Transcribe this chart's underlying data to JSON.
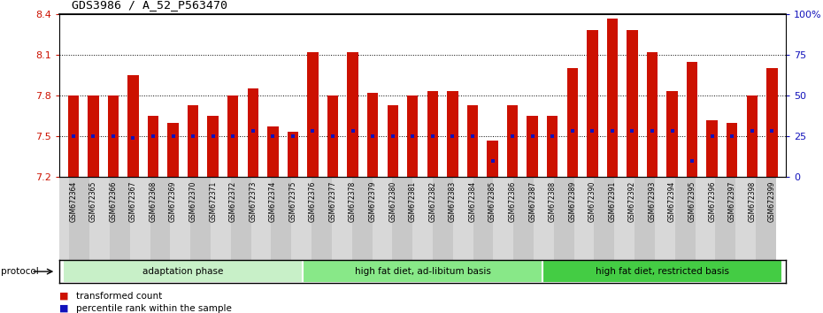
{
  "title": "GDS3986 / A_52_P563470",
  "samples": [
    "GSM672364",
    "GSM672365",
    "GSM672366",
    "GSM672367",
    "GSM672368",
    "GSM672369",
    "GSM672370",
    "GSM672371",
    "GSM672372",
    "GSM672373",
    "GSM672374",
    "GSM672375",
    "GSM672376",
    "GSM672377",
    "GSM672378",
    "GSM672379",
    "GSM672380",
    "GSM672381",
    "GSM672382",
    "GSM672383",
    "GSM672384",
    "GSM672385",
    "GSM672386",
    "GSM672387",
    "GSM672388",
    "GSM672389",
    "GSM672390",
    "GSM672391",
    "GSM672392",
    "GSM672393",
    "GSM672394",
    "GSM672395",
    "GSM672396",
    "GSM672397",
    "GSM672398",
    "GSM672399"
  ],
  "bar_values": [
    7.8,
    7.8,
    7.8,
    7.95,
    7.65,
    7.6,
    7.73,
    7.65,
    7.8,
    7.85,
    7.57,
    7.53,
    8.12,
    7.8,
    8.12,
    7.82,
    7.73,
    7.8,
    7.83,
    7.83,
    7.73,
    7.47,
    7.73,
    7.65,
    7.65,
    8.0,
    8.28,
    8.37,
    8.28,
    8.12,
    7.83,
    8.05,
    7.62,
    7.6,
    7.8,
    8.0
  ],
  "percentile_values": [
    25,
    25,
    25,
    24,
    25,
    25,
    25,
    25,
    25,
    28,
    25,
    25,
    28,
    25,
    28,
    25,
    25,
    25,
    25,
    25,
    25,
    10,
    25,
    25,
    25,
    28,
    28,
    28,
    28,
    28,
    28,
    10,
    25,
    25,
    28,
    28
  ],
  "ymin": 7.2,
  "ymax": 8.4,
  "yticks": [
    7.2,
    7.5,
    7.8,
    8.1,
    8.4
  ],
  "ytick_labels": [
    "7.2",
    "7.5",
    "7.8",
    "8.1",
    "8.4"
  ],
  "right_yticks": [
    0,
    25,
    50,
    75,
    100
  ],
  "right_ytick_labels": [
    "0",
    "25",
    "50",
    "75",
    "100%"
  ],
  "bar_color": "#cc1100",
  "percentile_color": "#1111bb",
  "groups": [
    {
      "label": "adaptation phase",
      "start": 0,
      "end": 12,
      "color": "#c8f0c8"
    },
    {
      "label": "high fat diet, ad-libitum basis",
      "start": 12,
      "end": 24,
      "color": "#88e888"
    },
    {
      "label": "high fat diet, restricted basis",
      "start": 24,
      "end": 36,
      "color": "#44cc44"
    }
  ],
  "protocol_label": "protocol",
  "legend_items": [
    {
      "color": "#cc1100",
      "label": "transformed count"
    },
    {
      "color": "#1111bb",
      "label": "percentile rank within the sample"
    }
  ],
  "dotted_grid": [
    7.5,
    7.8,
    8.1
  ],
  "bar_width": 0.55,
  "fig_width": 9.3,
  "fig_height": 3.54,
  "dpi": 100,
  "xtick_bg_light": "#d8d8d8",
  "xtick_bg_dark": "#c8c8c8"
}
